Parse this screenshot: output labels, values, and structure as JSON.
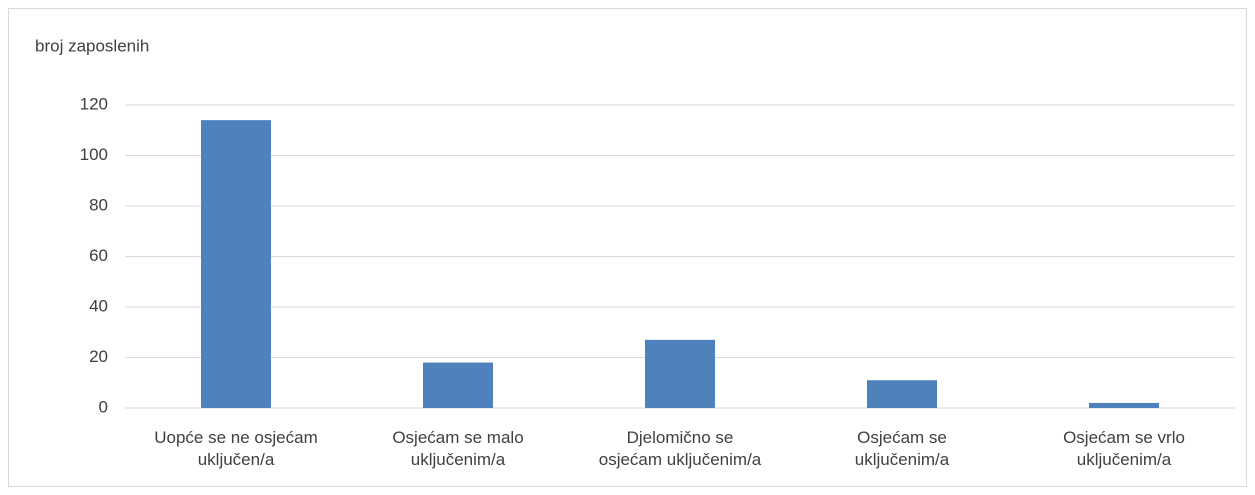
{
  "chart_data": {
    "type": "bar",
    "y_axis_label": "broj zaposlenih",
    "categories": [
      "Uopće se ne osjećam uključen/a",
      "Osjećam se malo uključenim/a",
      "Djelomično se osjećam uključenim/a",
      "Osjećam se uključenim/a",
      "Osjećam se vrlo uključenim/a"
    ],
    "values": [
      114,
      18,
      27,
      11,
      2
    ],
    "color": "#4f81bd",
    "ylim": [
      0,
      120
    ],
    "yticks": [
      0,
      20,
      40,
      60,
      80,
      100,
      120
    ],
    "grid": true
  }
}
